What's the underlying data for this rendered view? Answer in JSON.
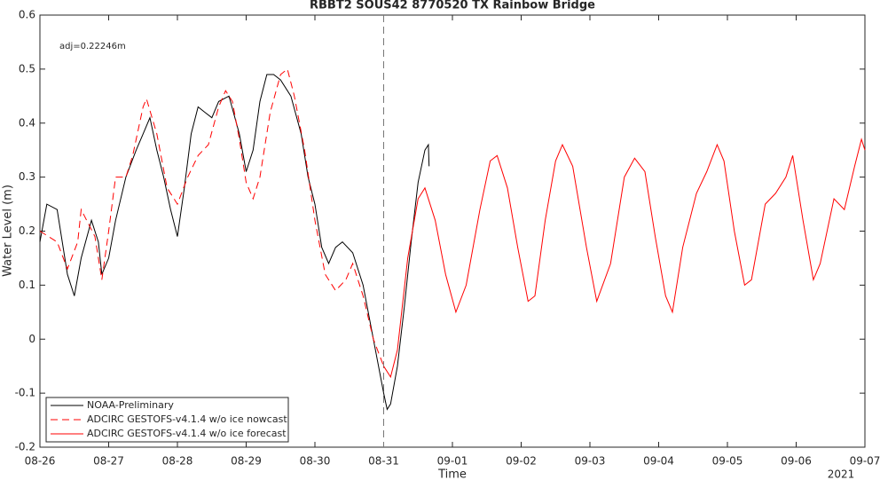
{
  "chart_data": {
    "type": "line",
    "title": "RBBT2 SOUS42 8770520 TX Rainbow Bridge",
    "xlabel": "Time",
    "ylabel": "Water Level (m)",
    "annotation": "adj=0.22246m",
    "year_label": "2021",
    "xlim": [
      0,
      12
    ],
    "xticks": [
      {
        "value": 0,
        "label": "08-26"
      },
      {
        "value": 1,
        "label": "08-27"
      },
      {
        "value": 2,
        "label": "08-28"
      },
      {
        "value": 3,
        "label": "08-29"
      },
      {
        "value": 4,
        "label": "08-30"
      },
      {
        "value": 5,
        "label": "08-31"
      },
      {
        "value": 6,
        "label": "09-01"
      },
      {
        "value": 7,
        "label": "09-02"
      },
      {
        "value": 8,
        "label": "09-03"
      },
      {
        "value": 9,
        "label": "09-04"
      },
      {
        "value": 10,
        "label": "09-05"
      },
      {
        "value": 11,
        "label": "09-06"
      },
      {
        "value": 12,
        "label": "09-07"
      }
    ],
    "ylim": [
      -0.2,
      0.6
    ],
    "yticks": [
      -0.2,
      -0.1,
      0,
      0.1,
      0.2,
      0.3,
      0.4,
      0.5,
      0.6
    ],
    "vline": 5,
    "legend": "lower left",
    "series": [
      {
        "name": "NOAA-Preliminary",
        "color": "#000000",
        "dash": false,
        "x": [
          0,
          0.1,
          0.25,
          0.4,
          0.5,
          0.6,
          0.75,
          0.85,
          0.9,
          1.0,
          1.1,
          1.25,
          1.4,
          1.5,
          1.6,
          1.7,
          1.8,
          1.9,
          2.0,
          2.1,
          2.2,
          2.3,
          2.4,
          2.5,
          2.6,
          2.75,
          2.9,
          3.0,
          3.1,
          3.2,
          3.3,
          3.4,
          3.5,
          3.65,
          3.8,
          3.9,
          4.0,
          4.1,
          4.2,
          4.3,
          4.4,
          4.55,
          4.7,
          4.85,
          5.0,
          5.05,
          5.1,
          5.2,
          5.3,
          5.4,
          5.5,
          5.6,
          5.65,
          5.66
        ],
        "values": [
          0.18,
          0.25,
          0.24,
          0.12,
          0.08,
          0.15,
          0.22,
          0.18,
          0.12,
          0.15,
          0.22,
          0.3,
          0.35,
          0.38,
          0.41,
          0.35,
          0.3,
          0.24,
          0.19,
          0.28,
          0.38,
          0.43,
          0.42,
          0.41,
          0.44,
          0.45,
          0.38,
          0.31,
          0.35,
          0.44,
          0.49,
          0.49,
          0.48,
          0.45,
          0.38,
          0.3,
          0.25,
          0.17,
          0.14,
          0.17,
          0.18,
          0.16,
          0.1,
          0.0,
          -0.1,
          -0.13,
          -0.12,
          -0.05,
          0.06,
          0.18,
          0.29,
          0.35,
          0.36,
          0.32
        ]
      },
      {
        "name": "ADCIRC GESTOFS-v4.1.4 w/o ice nowcast",
        "color": "#ff0000",
        "dash": true,
        "x": [
          0,
          0.25,
          0.4,
          0.55,
          0.6,
          0.8,
          0.9,
          1.0,
          1.1,
          1.25,
          1.35,
          1.5,
          1.55,
          1.7,
          1.85,
          2.0,
          2.15,
          2.3,
          2.45,
          2.6,
          2.7,
          2.8,
          2.9,
          3.0,
          3.1,
          3.2,
          3.35,
          3.5,
          3.6,
          3.7,
          3.85,
          4.0,
          4.15,
          4.3,
          4.45,
          4.55,
          4.7,
          4.85,
          5.0
        ],
        "values": [
          0.2,
          0.18,
          0.13,
          0.18,
          0.24,
          0.19,
          0.11,
          0.2,
          0.3,
          0.3,
          0.34,
          0.43,
          0.445,
          0.38,
          0.28,
          0.25,
          0.3,
          0.34,
          0.36,
          0.43,
          0.46,
          0.44,
          0.37,
          0.29,
          0.26,
          0.3,
          0.42,
          0.49,
          0.5,
          0.45,
          0.35,
          0.22,
          0.12,
          0.09,
          0.11,
          0.14,
          0.08,
          0.0,
          -0.05
        ]
      },
      {
        "name": "ADCIRC GESTOFS-v4.1.4 w/o ice forecast",
        "color": "#ff0000",
        "dash": false,
        "x": [
          5.0,
          5.1,
          5.2,
          5.35,
          5.5,
          5.6,
          5.75,
          5.9,
          6.05,
          6.2,
          6.4,
          6.55,
          6.65,
          6.8,
          6.95,
          7.1,
          7.2,
          7.35,
          7.5,
          7.6,
          7.75,
          7.95,
          8.1,
          8.3,
          8.5,
          8.65,
          8.8,
          8.95,
          9.1,
          9.2,
          9.35,
          9.55,
          9.7,
          9.85,
          9.95,
          10.1,
          10.25,
          10.35,
          10.55,
          10.7,
          10.85,
          10.95,
          11.1,
          11.25,
          11.35,
          11.55,
          11.7,
          11.85,
          11.95,
          12.0
        ],
        "values": [
          -0.05,
          -0.07,
          -0.02,
          0.15,
          0.26,
          0.28,
          0.22,
          0.12,
          0.05,
          0.1,
          0.24,
          0.33,
          0.34,
          0.28,
          0.17,
          0.07,
          0.08,
          0.22,
          0.33,
          0.36,
          0.32,
          0.17,
          0.07,
          0.14,
          0.3,
          0.335,
          0.31,
          0.19,
          0.08,
          0.05,
          0.17,
          0.27,
          0.31,
          0.36,
          0.33,
          0.2,
          0.1,
          0.11,
          0.25,
          0.27,
          0.3,
          0.34,
          0.22,
          0.11,
          0.14,
          0.26,
          0.24,
          0.32,
          0.37,
          0.35
        ]
      }
    ]
  }
}
